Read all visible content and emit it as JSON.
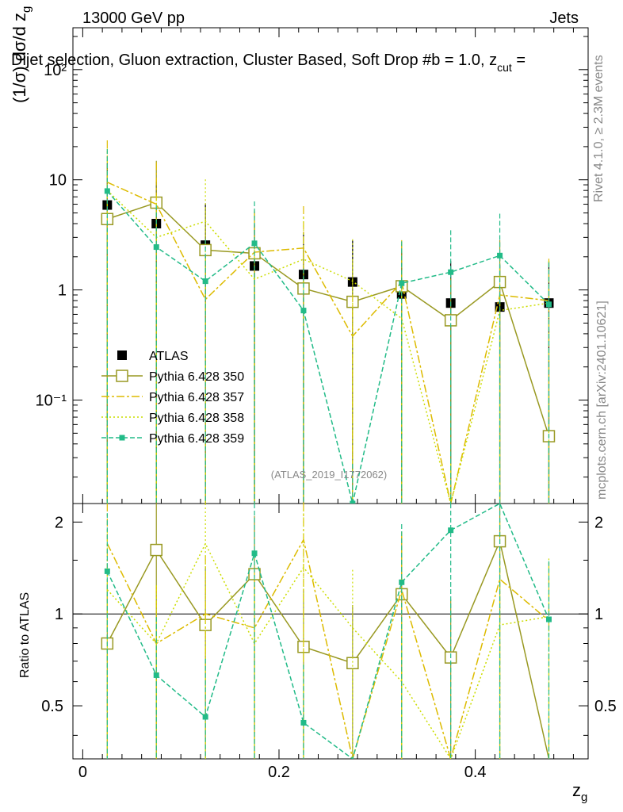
{
  "header": {
    "left": "13000 GeV pp",
    "right": "Jets",
    "title": "Dijet selection, Gluon extraction, Cluster Based, Soft Drop #b = 1.0, z",
    "title_sub": "cut",
    "title_end": " = "
  },
  "side": {
    "rivet": "Rivet 4.1.0, ≥ 2.3M events",
    "mcplots": "mcplots.cern.ch [arXiv:2401.10621]"
  },
  "watermark": "(ATLAS_2019_I1772062)",
  "chart_data": {
    "type": "scatter",
    "xlabel": "z",
    "xlabel_sub": "g",
    "ylabel": "(1/σ) dσ/d z",
    "ylabel_sub": "g",
    "ratio_ylabel": "Ratio to ATLAS",
    "xlim": [
      -0.01,
      0.515
    ],
    "ylim": [
      0.0115,
      240
    ],
    "yscale": "log",
    "ratio_ylim": [
      0.335,
      2.3
    ],
    "x_ticks": [
      "0",
      "0.2",
      "0.4"
    ],
    "y_ticks": [
      "10⁻¹",
      "1",
      "10",
      "10²"
    ],
    "ratio_ticks": [
      "0.5",
      "1",
      "2"
    ],
    "x": [
      0.025,
      0.075,
      0.125,
      0.175,
      0.225,
      0.275,
      0.325,
      0.375,
      0.425,
      0.475
    ],
    "series": [
      {
        "name": "ATLAS",
        "color": "#000000",
        "marker": "square-filled",
        "dash": "",
        "values": [
          5.9,
          4.0,
          2.55,
          1.65,
          1.38,
          1.18,
          0.92,
          0.76,
          0.7,
          0.76
        ],
        "ratio": [
          1,
          1,
          1,
          1,
          1,
          1,
          1,
          1,
          1,
          1
        ]
      },
      {
        "name": "Pythia 6.428 350",
        "color": "#999922",
        "marker": "square-open",
        "dash": "",
        "values": [
          4.4,
          6.2,
          2.3,
          2.15,
          1.03,
          0.78,
          1.08,
          0.53,
          1.18,
          0.047
        ],
        "ratio": [
          0.8,
          1.62,
          0.92,
          1.35,
          0.78,
          0.69,
          1.16,
          0.72,
          1.73,
          0.2
        ]
      },
      {
        "name": "Pythia 6.428 357",
        "color": "#ddbb00",
        "marker": "",
        "dash": "10,3,3,3",
        "values": [
          9.5,
          6.0,
          0.82,
          2.2,
          2.4,
          0.38,
          1.18,
          0.011,
          0.9,
          0.8
        ],
        "ratio": [
          1.7,
          0.8,
          1.0,
          0.9,
          1.75,
          0.2,
          1.2,
          0.2,
          1.3,
          0.95
        ]
      },
      {
        "name": "Pythia 6.428 358",
        "color": "#ccdd00",
        "marker": "",
        "dash": "2,3",
        "values": [
          8.0,
          3.0,
          4.2,
          1.25,
          1.9,
          1.2,
          0.55,
          0.011,
          0.65,
          0.76
        ],
        "ratio": [
          1.2,
          0.8,
          1.7,
          0.8,
          1.42,
          0.9,
          0.6,
          0.2,
          0.92,
          0.98
        ]
      },
      {
        "name": "Pythia 6.428 359",
        "color": "#22bb88",
        "marker": "square-filled-small",
        "dash": "6,3",
        "values": [
          7.9,
          2.45,
          1.2,
          2.65,
          0.65,
          0.011,
          1.15,
          1.45,
          2.05,
          0.74
        ],
        "ratio": [
          1.38,
          0.63,
          0.46,
          1.58,
          0.44,
          0.2,
          1.27,
          1.88,
          2.6,
          0.96
        ]
      }
    ]
  }
}
